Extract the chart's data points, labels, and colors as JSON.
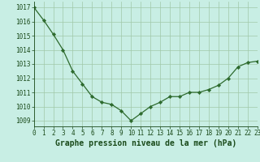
{
  "x": [
    0,
    1,
    2,
    3,
    4,
    5,
    6,
    7,
    8,
    9,
    10,
    11,
    12,
    13,
    14,
    15,
    16,
    17,
    18,
    19,
    20,
    21,
    22,
    23
  ],
  "y": [
    1017.0,
    1016.1,
    1015.1,
    1014.0,
    1012.5,
    1011.6,
    1010.7,
    1010.3,
    1010.15,
    1009.7,
    1009.0,
    1009.5,
    1010.0,
    1010.3,
    1010.7,
    1010.7,
    1011.0,
    1011.0,
    1011.2,
    1011.5,
    1012.0,
    1012.8,
    1013.1,
    1013.2
  ],
  "xlim": [
    0,
    23
  ],
  "ylim": [
    1008.6,
    1017.4
  ],
  "yticks": [
    1009,
    1010,
    1011,
    1012,
    1013,
    1014,
    1015,
    1016,
    1017
  ],
  "xticks": [
    0,
    1,
    2,
    3,
    4,
    5,
    6,
    7,
    8,
    9,
    10,
    11,
    12,
    13,
    14,
    15,
    16,
    17,
    18,
    19,
    20,
    21,
    22,
    23
  ],
  "xlabel": "Graphe pression niveau de la mer (hPa)",
  "line_color": "#2d6a2d",
  "marker_color": "#2d6a2d",
  "bg_color": "#c8eee4",
  "grid_color": "#a0c8a8",
  "text_color": "#1a4a1a",
  "tick_fontsize": 5.5,
  "xlabel_fontsize": 7.0
}
